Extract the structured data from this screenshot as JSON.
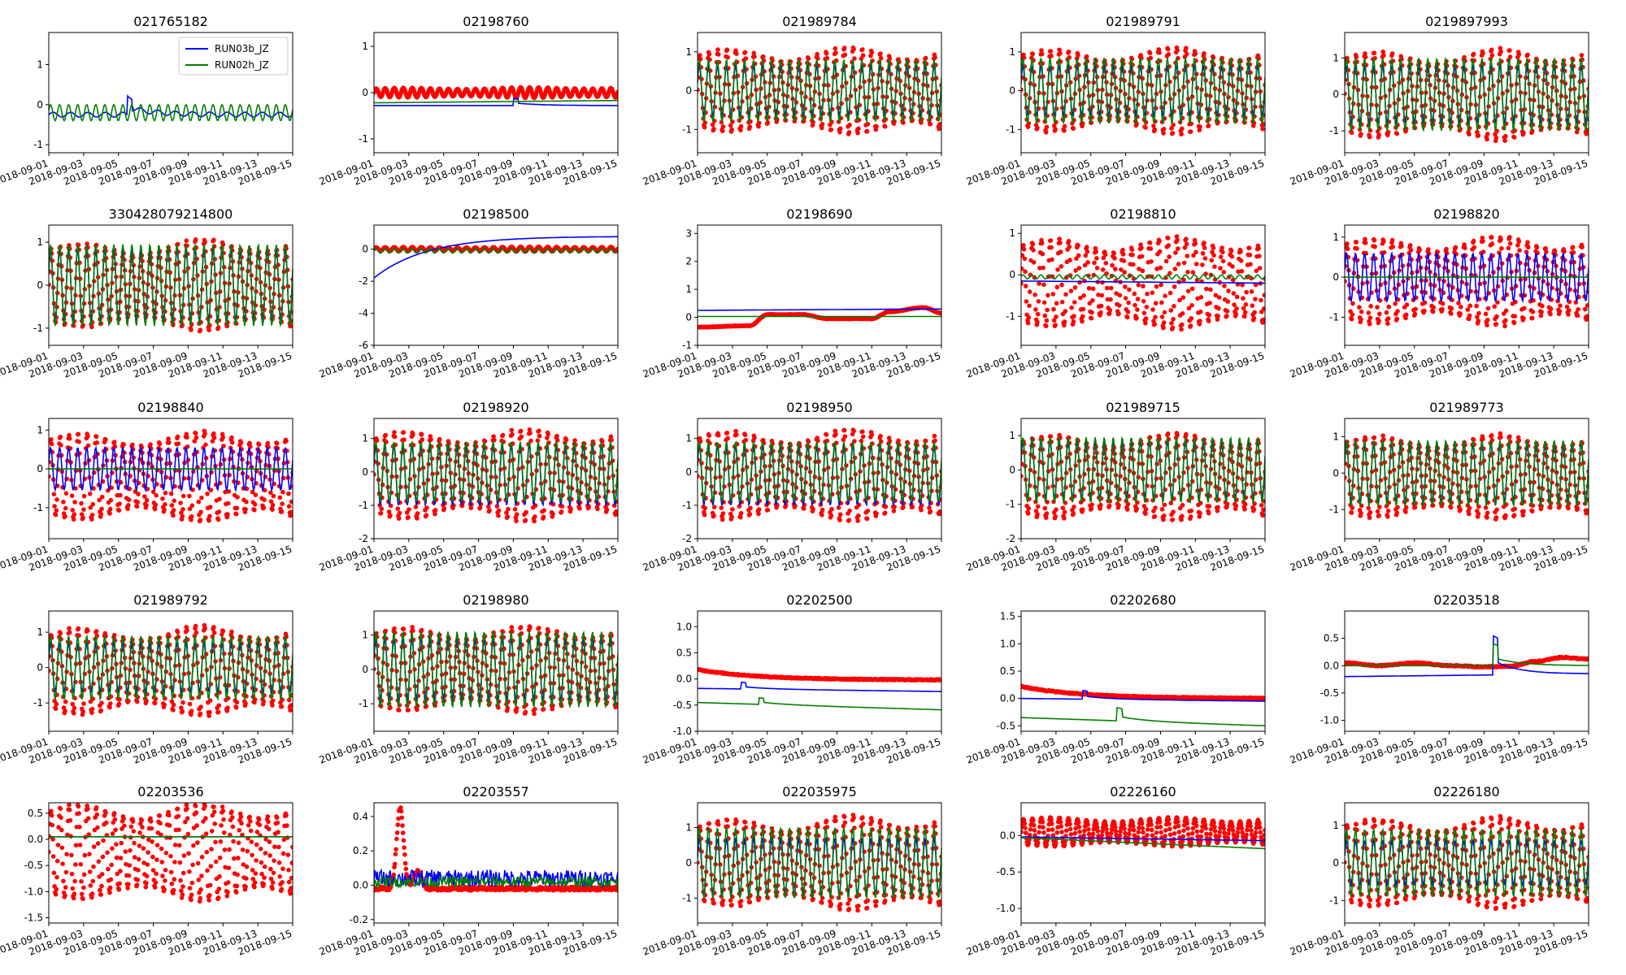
{
  "figure": {
    "layout": {
      "rows": 5,
      "cols": 5
    },
    "x_ticks": [
      "2018-09-01",
      "2018-09-03",
      "2018-09-05",
      "2018-09-07",
      "2018-09-09",
      "2018-09-11",
      "2018-09-13",
      "2018-09-15"
    ],
    "legend": {
      "location": "top-right",
      "entries": [
        "RUN03b_JZ",
        "RUN02h_JZ"
      ]
    },
    "colors": {
      "RUN03b_JZ": "#0000ff",
      "RUN02h_JZ": "#008000",
      "observed": "#ff0000"
    }
  },
  "chart_data": [
    {
      "type": "line",
      "title": "021765182",
      "xlim": [
        "2018-09-01",
        "2018-09-15"
      ],
      "ylim": [
        -1.2,
        1.8
      ],
      "yticks": [
        -1,
        0,
        1
      ],
      "observed": null,
      "run03b": {
        "mode": "step",
        "base": -0.25,
        "amp": 0.06,
        "steps": [
          [
            4.5,
            0.3
          ]
        ],
        "drift": 0
      },
      "run02h": {
        "mode": "osc",
        "base": -0.2,
        "amp": 0.2,
        "drift": 0
      }
    },
    {
      "type": "line",
      "title": "02198760",
      "xlim": [
        "2018-09-01",
        "2018-09-15"
      ],
      "ylim": [
        -1.3,
        1.3
      ],
      "yticks": [
        -1,
        0,
        1
      ],
      "observed": {
        "base": 0.0,
        "amp": 0.1,
        "drift": 0.25
      },
      "run03b": {
        "mode": "flat",
        "base": -0.28,
        "steps": [
          [
            8.0,
            0.1
          ]
        ],
        "drift": 0
      },
      "run02h": {
        "mode": "flat",
        "base": -0.22,
        "drift": 0.05
      }
    },
    {
      "type": "line",
      "title": "021989784",
      "xlim": [
        "2018-09-01",
        "2018-09-15"
      ],
      "ylim": [
        -1.6,
        1.5
      ],
      "yticks": [
        -1,
        0,
        1
      ],
      "observed": {
        "base": 0.0,
        "amp": 1.05,
        "drift": 0.1
      },
      "run03b": {
        "mode": "osc",
        "base": 0.0,
        "amp": 0.65,
        "drift": 0
      },
      "run02h": {
        "mode": "osc",
        "base": 0.0,
        "amp": 0.8,
        "drift": 0
      }
    },
    {
      "type": "line",
      "title": "021989791",
      "xlim": [
        "2018-09-01",
        "2018-09-15"
      ],
      "ylim": [
        -1.6,
        1.5
      ],
      "yticks": [
        -1,
        0,
        1
      ],
      "observed": {
        "base": 0.0,
        "amp": 1.05,
        "drift": 0.1
      },
      "run03b": {
        "mode": "osc",
        "base": 0.0,
        "amp": 0.65,
        "drift": 0
      },
      "run02h": {
        "mode": "osc",
        "base": 0.0,
        "amp": 0.85,
        "drift": 0
      }
    },
    {
      "type": "line",
      "title": "0219897993",
      "xlim": [
        "2018-09-01",
        "2018-09-15"
      ],
      "ylim": [
        -1.6,
        1.7
      ],
      "yticks": [
        -1,
        0,
        1
      ],
      "observed": {
        "base": 0.0,
        "amp": 1.15,
        "drift": 0.15
      },
      "run03b": {
        "mode": "osc",
        "base": 0.0,
        "amp": 0.8,
        "drift": 0
      },
      "run02h": {
        "mode": "osc",
        "base": 0.0,
        "amp": 1.0,
        "drift": 0
      }
    },
    {
      "type": "line",
      "title": "330428079214800",
      "xlim": [
        "2018-09-01",
        "2018-09-15"
      ],
      "ylim": [
        -1.4,
        1.4
      ],
      "yticks": [
        -1,
        0,
        1
      ],
      "observed": {
        "base": 0.0,
        "amp": 0.95,
        "drift": 0.2
      },
      "run03b": {
        "mode": "osc",
        "base": 0.0,
        "amp": 0.85,
        "drift": 0
      },
      "run02h": {
        "mode": "osc",
        "base": 0.0,
        "amp": 0.95,
        "drift": 0
      }
    },
    {
      "type": "line",
      "title": "02198500",
      "xlim": [
        "2018-09-01",
        "2018-09-15"
      ],
      "ylim": [
        -6,
        1.5
      ],
      "yticks": [
        -6,
        -4,
        -2,
        0
      ],
      "observed": {
        "base": 0.0,
        "amp": 0.12,
        "drift": 0.4
      },
      "run03b": {
        "mode": "rise",
        "base": -1.8,
        "top": 0.8,
        "drift": 0
      },
      "run02h": {
        "mode": "osc",
        "base": -0.1,
        "amp": 0.15,
        "drift": 0
      }
    },
    {
      "type": "line",
      "title": "02198690",
      "xlim": [
        "2018-09-01",
        "2018-09-15"
      ],
      "ylim": [
        -1.0,
        3.3
      ],
      "yticks": [
        -1,
        0,
        1,
        2,
        3
      ],
      "observed": {
        "mode": "smooth",
        "points": [
          [
            0,
            -0.35
          ],
          [
            3,
            -0.3
          ],
          [
            4,
            0.1
          ],
          [
            6,
            0.1
          ],
          [
            7.5,
            -0.05
          ],
          [
            10,
            -0.05
          ],
          [
            11,
            0.2
          ],
          [
            13,
            0.35
          ],
          [
            14,
            0.15
          ]
        ]
      },
      "run03b": {
        "mode": "flat",
        "base": 0.25,
        "drift": 0.05
      },
      "run02h": {
        "mode": "flat",
        "base": 0.03,
        "drift": 0
      }
    },
    {
      "type": "line",
      "title": "02198810",
      "xlim": [
        "2018-09-01",
        "2018-09-15"
      ],
      "ylim": [
        -1.7,
        1.2
      ],
      "yticks": [
        -1,
        0,
        1
      ],
      "observed": {
        "base": -0.2,
        "amp": 1.05,
        "drift": 0.1
      },
      "run03b": {
        "mode": "flat",
        "base": -0.15,
        "drift": -0.05
      },
      "run02h": {
        "mode": "osc",
        "base": -0.05,
        "amp": 0.05,
        "drift": 0
      }
    },
    {
      "type": "line",
      "title": "02198820",
      "xlim": [
        "2018-09-01",
        "2018-09-15"
      ],
      "ylim": [
        -1.7,
        1.3
      ],
      "yticks": [
        -1,
        0,
        1
      ],
      "observed": {
        "base": -0.1,
        "amp": 1.05,
        "drift": 0.1
      },
      "run03b": {
        "mode": "osc",
        "base": 0.0,
        "amp": 0.6,
        "drift": 0
      },
      "run02h": {
        "mode": "flat",
        "base": 0.0,
        "drift": 0
      }
    },
    {
      "type": "line",
      "title": "02198840",
      "xlim": [
        "2018-09-01",
        "2018-09-15"
      ],
      "ylim": [
        -1.8,
        1.3
      ],
      "yticks": [
        -1,
        0,
        1
      ],
      "observed": {
        "base": -0.2,
        "amp": 1.1,
        "drift": 0.1
      },
      "run03b": {
        "mode": "osc",
        "base": 0.0,
        "amp": 0.55,
        "drift": 0
      },
      "run02h": {
        "mode": "flat",
        "base": 0.0,
        "drift": 0
      }
    },
    {
      "type": "line",
      "title": "02198920",
      "xlim": [
        "2018-09-01",
        "2018-09-15"
      ],
      "ylim": [
        -2.0,
        1.6
      ],
      "yticks": [
        -2,
        -1,
        0,
        1
      ],
      "observed": {
        "base": -0.1,
        "amp": 1.3,
        "drift": 0.1
      },
      "run03b": {
        "mode": "osc",
        "base": -0.1,
        "amp": 0.9,
        "drift": 0
      },
      "run02h": {
        "mode": "osc",
        "base": 0.0,
        "amp": 0.9,
        "drift": 0
      }
    },
    {
      "type": "line",
      "title": "02198950",
      "xlim": [
        "2018-09-01",
        "2018-09-15"
      ],
      "ylim": [
        -2.0,
        1.6
      ],
      "yticks": [
        -2,
        -1,
        0,
        1
      ],
      "observed": {
        "base": -0.1,
        "amp": 1.3,
        "drift": 0.1
      },
      "run03b": {
        "mode": "osc",
        "base": -0.1,
        "amp": 0.9,
        "drift": 0
      },
      "run02h": {
        "mode": "osc",
        "base": 0.0,
        "amp": 0.9,
        "drift": 0
      }
    },
    {
      "type": "line",
      "title": "021989715",
      "xlim": [
        "2018-09-01",
        "2018-09-15"
      ],
      "ylim": [
        -2.0,
        1.5
      ],
      "yticks": [
        -2,
        -1,
        0,
        1
      ],
      "observed": {
        "base": -0.2,
        "amp": 1.2,
        "drift": 0.1
      },
      "run03b": {
        "mode": "osc",
        "base": 0.0,
        "amp": 0.85,
        "drift": 0
      },
      "run02h": {
        "mode": "osc",
        "base": 0.0,
        "amp": 0.95,
        "drift": 0
      }
    },
    {
      "type": "line",
      "title": "021989773",
      "xlim": [
        "2018-09-01",
        "2018-09-15"
      ],
      "ylim": [
        -1.8,
        1.5
      ],
      "yticks": [
        -1,
        0,
        1
      ],
      "observed": {
        "base": -0.1,
        "amp": 1.1,
        "drift": 0.1
      },
      "run03b": {
        "mode": "osc",
        "base": 0.0,
        "amp": 0.8,
        "drift": 0
      },
      "run02h": {
        "mode": "osc",
        "base": 0.0,
        "amp": 0.9,
        "drift": 0
      }
    },
    {
      "type": "line",
      "title": "021989792",
      "xlim": [
        "2018-09-01",
        "2018-09-15"
      ],
      "ylim": [
        -1.8,
        1.6
      ],
      "yticks": [
        -1,
        0,
        1
      ],
      "observed": {
        "base": -0.1,
        "amp": 1.2,
        "drift": 0.1
      },
      "run03b": {
        "mode": "osc",
        "base": 0.0,
        "amp": 0.7,
        "drift": 0
      },
      "run02h": {
        "mode": "osc",
        "base": 0.0,
        "amp": 0.9,
        "drift": 0
      }
    },
    {
      "type": "line",
      "title": "02198980",
      "xlim": [
        "2018-09-01",
        "2018-09-15"
      ],
      "ylim": [
        -1.8,
        1.7
      ],
      "yticks": [
        -1,
        0,
        1
      ],
      "observed": {
        "base": 0.0,
        "amp": 1.2,
        "drift": 0.1
      },
      "run03b": {
        "mode": "osc",
        "base": 0.0,
        "amp": 0.9,
        "drift": 0
      },
      "run02h": {
        "mode": "osc",
        "base": 0.0,
        "amp": 1.1,
        "drift": 0
      }
    },
    {
      "type": "line",
      "title": "02202500",
      "xlim": [
        "2018-09-01",
        "2018-09-15"
      ],
      "ylim": [
        -1.0,
        1.3
      ],
      "yticks": [
        -1.0,
        -0.5,
        0.0,
        0.5,
        1.0
      ],
      "observed": {
        "mode": "decay",
        "start": 0.18,
        "end": -0.02
      },
      "run03b": {
        "mode": "flat",
        "base": -0.18,
        "steps": [
          [
            2.5,
            0.08
          ]
        ],
        "drift": -0.06
      },
      "run02h": {
        "mode": "flat",
        "base": -0.45,
        "steps": [
          [
            3.5,
            0.08
          ]
        ],
        "drift": -0.14
      }
    },
    {
      "type": "line",
      "title": "02202680",
      "xlim": [
        "2018-09-01",
        "2018-09-15"
      ],
      "ylim": [
        -0.6,
        1.6
      ],
      "yticks": [
        -0.5,
        0.0,
        0.5,
        1.0,
        1.5
      ],
      "observed": {
        "mode": "decay",
        "start": 0.22,
        "end": 0.0
      },
      "run03b": {
        "mode": "flat",
        "base": 0.0,
        "steps": [
          [
            3.5,
            0.1
          ]
        ],
        "drift": -0.05
      },
      "run02h": {
        "mode": "flat",
        "base": -0.35,
        "steps": [
          [
            5.5,
            0.15
          ]
        ],
        "drift": -0.15
      }
    },
    {
      "type": "line",
      "title": "02203518",
      "xlim": [
        "2018-09-01",
        "2018-09-15"
      ],
      "ylim": [
        -1.2,
        1.0
      ],
      "yticks": [
        -1.0,
        -0.5,
        0.0,
        0.5
      ],
      "observed": {
        "mode": "smooth",
        "points": [
          [
            0,
            0.05
          ],
          [
            2,
            0.0
          ],
          [
            4,
            0.05
          ],
          [
            6,
            0.0
          ],
          [
            8,
            -0.02
          ],
          [
            9.5,
            -0.01
          ],
          [
            11,
            0.08
          ],
          [
            12.5,
            0.15
          ],
          [
            14,
            0.12
          ]
        ]
      },
      "run03b": {
        "mode": "flat",
        "base": -0.2,
        "steps": [
          [
            8.5,
            0.45
          ]
        ],
        "drift": 0.05
      },
      "run02h": {
        "mode": "flat",
        "base": 0.0,
        "steps": [
          [
            8.5,
            0.25
          ]
        ],
        "drift": 0.0
      }
    },
    {
      "type": "line",
      "title": "02203536",
      "xlim": [
        "2018-09-01",
        "2018-09-15"
      ],
      "ylim": [
        -1.6,
        0.7
      ],
      "yticks": [
        -1.5,
        -1.0,
        -0.5,
        0.0,
        0.5
      ],
      "observed": {
        "base": -0.25,
        "amp": 0.9,
        "drift": 0.05
      },
      "run03b": {
        "mode": "flat",
        "base": 0.05,
        "drift": 0
      },
      "run02h": {
        "mode": "flat",
        "base": 0.05,
        "drift": 0
      }
    },
    {
      "type": "line",
      "title": "02203557",
      "xlim": [
        "2018-09-01",
        "2018-09-15"
      ],
      "ylim": [
        -0.22,
        0.48
      ],
      "yticks": [
        -0.2,
        0.0,
        0.2,
        0.4
      ],
      "observed": {
        "mode": "spike",
        "base": -0.02,
        "peak_x": 1.5,
        "peak": 0.45
      },
      "run03b": {
        "mode": "noisy",
        "base": 0.04,
        "amp": 0.05,
        "drift": 0
      },
      "run02h": {
        "mode": "noisy",
        "base": 0.02,
        "amp": 0.03,
        "drift": 0
      }
    },
    {
      "type": "line",
      "title": "022035975",
      "xlim": [
        "2018-09-01",
        "2018-09-15"
      ],
      "ylim": [
        -1.7,
        1.7
      ],
      "yticks": [
        -1,
        0,
        1
      ],
      "observed": {
        "base": 0.0,
        "amp": 1.2,
        "drift": 0.2
      },
      "run03b": {
        "mode": "osc",
        "base": -0.1,
        "amp": 0.8,
        "drift": 0
      },
      "run02h": {
        "mode": "osc",
        "base": 0.0,
        "amp": 1.0,
        "drift": 0
      }
    },
    {
      "type": "line",
      "title": "02226160",
      "xlim": [
        "2018-09-01",
        "2018-09-15"
      ],
      "ylim": [
        -1.2,
        0.45
      ],
      "yticks": [
        -1.0,
        -0.5,
        0.0
      ],
      "observed": {
        "base": 0.05,
        "amp": 0.2,
        "drift": 0.0
      },
      "run03b": {
        "mode": "flat",
        "base": -0.02,
        "drift": -0.05
      },
      "run02h": {
        "mode": "flat",
        "base": -0.03,
        "drift": -0.15
      }
    },
    {
      "type": "line",
      "title": "02226180",
      "xlim": [
        "2018-09-01",
        "2018-09-15"
      ],
      "ylim": [
        -1.6,
        1.6
      ],
      "yticks": [
        -1,
        0,
        1
      ],
      "observed": {
        "base": 0.0,
        "amp": 1.15,
        "drift": 0.1
      },
      "run03b": {
        "mode": "osc",
        "base": 0.0,
        "amp": 0.6,
        "drift": 0
      },
      "run02h": {
        "mode": "osc",
        "base": 0.0,
        "amp": 0.9,
        "drift": 0
      }
    }
  ]
}
